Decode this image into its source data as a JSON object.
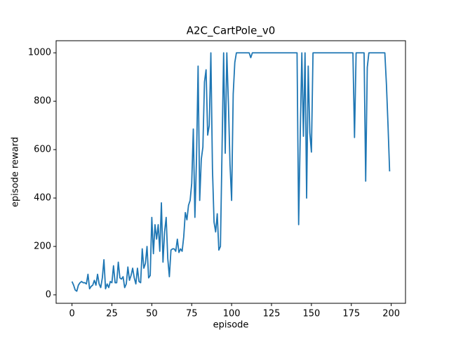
{
  "chart_data": {
    "type": "line",
    "title": "A2C_CartPole_v0",
    "xlabel": "episode",
    "ylabel": "episode reward",
    "x": [
      0,
      1,
      2,
      3,
      4,
      5,
      6,
      7,
      8,
      9,
      10,
      11,
      12,
      13,
      14,
      15,
      16,
      17,
      18,
      19,
      20,
      21,
      22,
      23,
      24,
      25,
      26,
      27,
      28,
      29,
      30,
      31,
      32,
      33,
      34,
      35,
      36,
      37,
      38,
      39,
      40,
      41,
      42,
      43,
      44,
      45,
      46,
      47,
      48,
      49,
      50,
      51,
      52,
      53,
      54,
      55,
      56,
      57,
      58,
      59,
      60,
      61,
      62,
      63,
      64,
      65,
      66,
      67,
      68,
      69,
      70,
      71,
      72,
      73,
      74,
      75,
      76,
      77,
      78,
      79,
      80,
      81,
      82,
      83,
      84,
      85,
      86,
      87,
      88,
      89,
      90,
      91,
      92,
      93,
      94,
      95,
      96,
      97,
      98,
      99,
      100,
      101,
      102,
      103,
      104,
      105,
      106,
      107,
      108,
      109,
      110,
      111,
      112,
      113,
      114,
      115,
      116,
      117,
      118,
      119,
      120,
      121,
      122,
      123,
      124,
      125,
      126,
      127,
      128,
      129,
      130,
      131,
      132,
      133,
      134,
      135,
      136,
      137,
      138,
      139,
      140,
      141,
      142,
      143,
      144,
      145,
      146,
      147,
      148,
      149,
      150,
      151,
      152,
      153,
      154,
      155,
      156,
      157,
      158,
      159,
      160,
      161,
      162,
      163,
      164,
      165,
      166,
      167,
      168,
      169,
      170,
      171,
      172,
      173,
      174,
      175,
      176,
      177,
      178,
      179,
      180,
      181,
      182,
      183,
      184,
      185,
      186,
      187,
      188,
      189,
      190,
      191,
      192,
      193,
      194,
      195,
      196,
      197,
      198,
      199
    ],
    "series": [
      {
        "name": "episode reward",
        "color": "#1f77b4",
        "values": [
          55,
          40,
          20,
          15,
          40,
          50,
          55,
          50,
          50,
          45,
          85,
          25,
          35,
          40,
          60,
          40,
          85,
          45,
          30,
          70,
          145,
          25,
          45,
          30,
          55,
          50,
          120,
          50,
          50,
          135,
          70,
          65,
          75,
          30,
          45,
          115,
          60,
          80,
          110,
          70,
          45,
          110,
          55,
          50,
          190,
          110,
          130,
          200,
          70,
          80,
          320,
          170,
          290,
          230,
          290,
          180,
          380,
          135,
          260,
          320,
          150,
          75,
          185,
          190,
          190,
          180,
          230,
          175,
          190,
          180,
          240,
          340,
          310,
          370,
          390,
          460,
          685,
          320,
          560,
          945,
          390,
          560,
          610,
          880,
          930,
          660,
          700,
          1000,
          520,
          300,
          260,
          335,
          185,
          200,
          600,
          1000,
          585,
          1000,
          790,
          540,
          390,
          830,
          960,
          1000,
          1000,
          1000,
          1000,
          1000,
          1000,
          1000,
          1000,
          1000,
          980,
          1000,
          1000,
          1000,
          1000,
          1000,
          1000,
          1000,
          1000,
          1000,
          1000,
          1000,
          1000,
          1000,
          1000,
          1000,
          1000,
          1000,
          1000,
          1000,
          1000,
          1000,
          1000,
          1000,
          1000,
          1000,
          1000,
          1000,
          1000,
          1000,
          290,
          660,
          1000,
          655,
          1000,
          400,
          945,
          670,
          590,
          1000,
          1000,
          1000,
          1000,
          1000,
          1000,
          1000,
          1000,
          1000,
          1000,
          1000,
          1000,
          1000,
          1000,
          1000,
          1000,
          1000,
          1000,
          1000,
          1000,
          1000,
          1000,
          1000,
          1000,
          1000,
          1000,
          650,
          1000,
          1000,
          1000,
          1000,
          1000,
          1000,
          470,
          940,
          1000,
          1000,
          1000,
          1000,
          1000,
          1000,
          1000,
          1000,
          1000,
          1000,
          1000,
          870,
          700,
          510
        ]
      }
    ],
    "xlim": [
      -9.95,
      208.95
    ],
    "ylim": [
      -35,
      1050
    ],
    "xticks": [
      0,
      25,
      50,
      75,
      100,
      125,
      150,
      175,
      200
    ],
    "yticks": [
      0,
      200,
      400,
      600,
      800,
      1000
    ]
  }
}
